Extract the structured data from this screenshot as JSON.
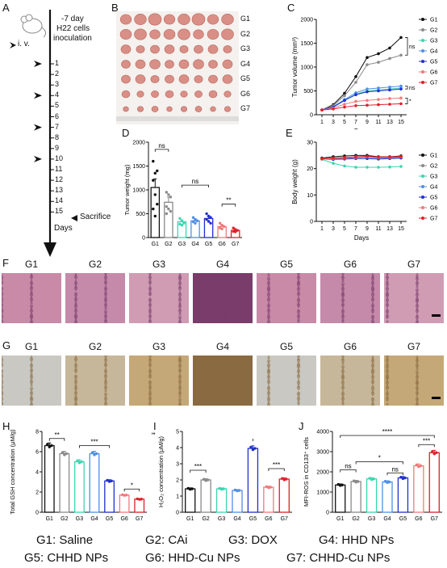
{
  "panels": {
    "A": "A",
    "B": "B",
    "C": "C",
    "D": "D",
    "E": "E",
    "F": "F",
    "G": "G",
    "H": "H",
    "I": "I",
    "J": "J"
  },
  "timeline": {
    "iv_label": "i. v.",
    "start_label": "-7 day",
    "start_sub1": "H22 cells",
    "start_sub2": "inoculation",
    "days": [
      "1",
      "2",
      "3",
      "4",
      "5",
      "6",
      "7",
      "8",
      "9",
      "10",
      "11",
      "12",
      "13",
      "14",
      "15"
    ],
    "injection_days": [
      1,
      4,
      7,
      10
    ],
    "sacrifice_label": "Sacrifice",
    "axis_label": "Days"
  },
  "groups": [
    "G1",
    "G2",
    "G3",
    "G4",
    "G5",
    "G6",
    "G7"
  ],
  "colors": {
    "G1": "#111111",
    "G2": "#8a8a8a",
    "G3": "#3ad6b0",
    "G4": "#4f8fe8",
    "G5": "#1f2fd0",
    "G6": "#f07a7a",
    "G7": "#e0202a"
  },
  "tumor_photo": {
    "rows": [
      "G1",
      "G2",
      "G3",
      "G4",
      "G5",
      "G6",
      "G7"
    ]
  },
  "chart_data": [
    {
      "id": "C",
      "type": "line",
      "ylabel": "Tumor volume (mm³)",
      "xlabel": "Days",
      "x": [
        1,
        3,
        5,
        7,
        9,
        11,
        13,
        15
      ],
      "xticks": [
        "1",
        "3",
        "5",
        "7",
        "9",
        "11",
        "13",
        "15"
      ],
      "ylim": [
        0,
        2000
      ],
      "yticks": [
        "0",
        "500",
        "1000",
        "1500",
        "2000"
      ],
      "series": [
        {
          "name": "G1",
          "values": [
            100,
            210,
            450,
            800,
            1200,
            1280,
            1400,
            1620
          ]
        },
        {
          "name": "G2",
          "values": [
            100,
            190,
            400,
            680,
            1050,
            1100,
            1180,
            1250
          ]
        },
        {
          "name": "G3",
          "values": [
            100,
            160,
            300,
            430,
            500,
            520,
            540,
            560
          ]
        },
        {
          "name": "G4",
          "values": [
            100,
            170,
            320,
            460,
            540,
            560,
            580,
            600
          ]
        },
        {
          "name": "G5",
          "values": [
            100,
            160,
            300,
            420,
            480,
            500,
            520,
            540
          ]
        },
        {
          "name": "G6",
          "values": [
            100,
            140,
            220,
            280,
            300,
            320,
            340,
            350
          ]
        },
        {
          "name": "G7",
          "values": [
            100,
            120,
            160,
            190,
            200,
            210,
            220,
            230
          ]
        }
      ],
      "annotations": [
        "ns",
        "ns",
        "*"
      ]
    },
    {
      "id": "D",
      "type": "bar",
      "ylabel": "Tumor weight (mg)",
      "categories": [
        "G1",
        "G2",
        "G3",
        "G4",
        "G5",
        "G6",
        "G7"
      ],
      "values": [
        1050,
        740,
        330,
        350,
        400,
        230,
        150
      ],
      "errors": [
        180,
        110,
        40,
        40,
        50,
        30,
        20
      ],
      "points": [
        [
          1600,
          1350,
          1400,
          1200,
          900,
          700,
          600,
          450
        ],
        [
          950,
          900,
          850,
          650,
          600,
          550,
          500
        ],
        [
          400,
          350,
          300,
          280,
          260
        ],
        [
          420,
          380,
          350,
          330,
          300
        ],
        [
          500,
          450,
          420,
          380,
          340,
          300
        ],
        [
          300,
          260,
          230,
          200,
          180
        ],
        [
          200,
          170,
          150,
          130,
          120
        ]
      ],
      "ylim": [
        0,
        2000
      ],
      "yticks": [
        "0",
        "500",
        "1000",
        "1500",
        "2000"
      ],
      "annotations": [
        "ns",
        "ns",
        "**"
      ]
    },
    {
      "id": "E",
      "type": "line",
      "ylabel": "Body weight (g)",
      "xlabel": "Days",
      "x": [
        1,
        3,
        5,
        7,
        9,
        11,
        13,
        15
      ],
      "xticks": [
        "1",
        "3",
        "5",
        "7",
        "9",
        "11",
        "13",
        "15"
      ],
      "ylim": [
        0,
        30
      ],
      "yticks": [
        "0",
        "10",
        "20",
        "30"
      ],
      "series": [
        {
          "name": "G1",
          "values": [
            24,
            24.5,
            24.8,
            25,
            25,
            24.5,
            24.5,
            24.8
          ]
        },
        {
          "name": "G2",
          "values": [
            23.8,
            24,
            24.2,
            24.5,
            24.6,
            24,
            24.2,
            24.4
          ]
        },
        {
          "name": "G3",
          "values": [
            23.5,
            22,
            21,
            20.5,
            20.5,
            20.5,
            20.6,
            20.8
          ]
        },
        {
          "name": "G4",
          "values": [
            23.6,
            23.8,
            24,
            24.2,
            24.3,
            24,
            24,
            24.2
          ]
        },
        {
          "name": "G5",
          "values": [
            23.7,
            23.5,
            23.6,
            23.8,
            23.8,
            23.6,
            23.8,
            24
          ]
        },
        {
          "name": "G6",
          "values": [
            23.6,
            23.8,
            24,
            24.2,
            24.4,
            24.2,
            24.2,
            24.4
          ]
        },
        {
          "name": "G7",
          "values": [
            23.8,
            24,
            24.2,
            24.4,
            24.6,
            24.4,
            24.4,
            24.6
          ]
        }
      ]
    },
    {
      "id": "H",
      "type": "bar",
      "ylabel": "Total GSH concentration (μM/g)",
      "categories": [
        "G1",
        "G2",
        "G3",
        "G4",
        "G5",
        "G6",
        "G7"
      ],
      "values": [
        6.6,
        5.8,
        5.0,
        5.8,
        3.1,
        1.7,
        1.3
      ],
      "ylim": [
        0,
        8
      ],
      "yticks": [
        "0",
        "2",
        "4",
        "6",
        "8"
      ],
      "annotations": [
        "**",
        "***",
        "*"
      ]
    },
    {
      "id": "I",
      "type": "bar",
      "ylabel": "H₂O₂ concentration (μM/g)",
      "categories": [
        "G1",
        "G2",
        "G3",
        "G4",
        "G5",
        "G6",
        "G7"
      ],
      "values": [
        1.45,
        2.0,
        1.45,
        1.35,
        3.95,
        1.55,
        2.05
      ],
      "ylim": [
        0,
        5
      ],
      "yticks": [
        "0",
        "1",
        "2",
        "3",
        "4",
        "5"
      ],
      "annotations": [
        "***",
        "***",
        "***"
      ]
    },
    {
      "id": "J",
      "type": "bar",
      "ylabel": "MFI-ROS in CD133⁺ cells",
      "categories": [
        "G1",
        "G2",
        "G3",
        "G4",
        "G5",
        "G6",
        "G7"
      ],
      "values": [
        1350,
        1520,
        1650,
        1500,
        1700,
        2300,
        2950
      ],
      "ylim": [
        0,
        4000
      ],
      "yticks": [
        "0",
        "1000",
        "2000",
        "3000",
        "4000"
      ],
      "annotations": [
        "ns",
        "*",
        "ns",
        "***",
        "****"
      ]
    }
  ],
  "legend_lines": [
    [
      "G1: Saline",
      "G2: CAi",
      "G3: DOX",
      "G4: HHD NPs"
    ],
    [
      "G5: CHHD NPs",
      "G6: HHD-Cu NPs",
      "G7: CHHD-Cu NPs"
    ]
  ]
}
